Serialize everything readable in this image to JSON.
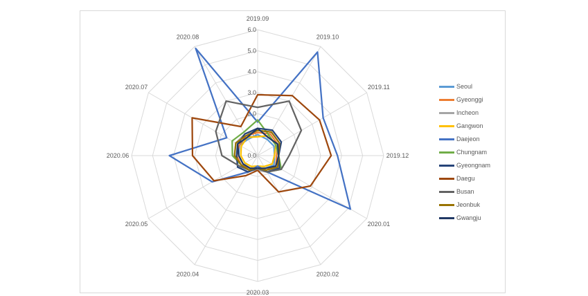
{
  "chart_data": {
    "type": "radar",
    "categories": [
      "2019.09",
      "2019.10",
      "2019.11",
      "2019.12",
      "2020.01",
      "2020.02",
      "2020.03",
      "2020.04",
      "2020.05",
      "2020.06",
      "2020.07",
      "2020.08"
    ],
    "rlim": [
      0,
      6
    ],
    "ticks": [
      "0.0",
      "1.0",
      "2.0",
      "3.0",
      "4.0",
      "5.0",
      "6.0"
    ],
    "grid": true,
    "legend_position": "right",
    "series": [
      {
        "name": "Seoul",
        "color": "#5b9bd5",
        "values": [
          1.0,
          0.9,
          0.9,
          0.8,
          0.9,
          0.7,
          0.7,
          0.7,
          0.8,
          0.9,
          1.0,
          0.9
        ]
      },
      {
        "name": "Gyeonggi",
        "color": "#ed7d31",
        "values": [
          1.1,
          1.2,
          1.1,
          0.9,
          1.0,
          0.8,
          0.6,
          0.7,
          0.9,
          1.0,
          1.0,
          1.1
        ]
      },
      {
        "name": "Incheon",
        "color": "#a5a5a5",
        "values": [
          1.2,
          1.3,
          1.2,
          1.0,
          1.1,
          0.9,
          0.7,
          0.8,
          0.9,
          1.1,
          1.2,
          1.2
        ]
      },
      {
        "name": "Gangwon",
        "color": "#ffc000",
        "values": [
          0.9,
          1.1,
          1.0,
          0.8,
          0.8,
          0.6,
          0.5,
          0.6,
          0.7,
          0.8,
          0.9,
          1.0
        ]
      },
      {
        "name": "Daejeon",
        "color": "#4472c4",
        "values": [
          1.6,
          5.7,
          3.6,
          3.8,
          5.1,
          0.9,
          0.5,
          0.9,
          2.5,
          4.2,
          1.7,
          5.9
        ]
      },
      {
        "name": "Chungnam",
        "color": "#70ad47",
        "values": [
          1.7,
          1.1,
          1.0,
          1.0,
          1.3,
          0.9,
          0.6,
          0.8,
          0.9,
          1.2,
          1.4,
          1.3
        ]
      },
      {
        "name": "Gyeongnam",
        "color": "#264478",
        "values": [
          1.3,
          1.4,
          1.3,
          1.0,
          1.2,
          0.9,
          0.6,
          0.9,
          1.1,
          1.0,
          1.1,
          1.2
        ]
      },
      {
        "name": "Daegu",
        "color": "#9e480e",
        "values": [
          2.9,
          3.3,
          3.4,
          3.5,
          2.9,
          2.0,
          0.7,
          1.1,
          2.4,
          3.1,
          3.6,
          1.6
        ]
      },
      {
        "name": "Busan",
        "color": "#636363",
        "values": [
          2.3,
          3.0,
          2.4,
          1.5,
          1.3,
          0.9,
          0.6,
          0.8,
          1.0,
          1.7,
          2.3,
          3.0
        ]
      },
      {
        "name": "Jeonbuk",
        "color": "#997300",
        "values": [
          1.2,
          1.3,
          1.2,
          1.0,
          1.1,
          0.8,
          0.6,
          0.8,
          0.9,
          1.1,
          1.2,
          1.1
        ]
      },
      {
        "name": "Gwangju",
        "color": "#203864",
        "values": [
          1.3,
          1.0,
          1.1,
          1.0,
          1.0,
          0.7,
          0.6,
          0.7,
          0.8,
          0.9,
          1.1,
          1.0
        ]
      }
    ]
  }
}
